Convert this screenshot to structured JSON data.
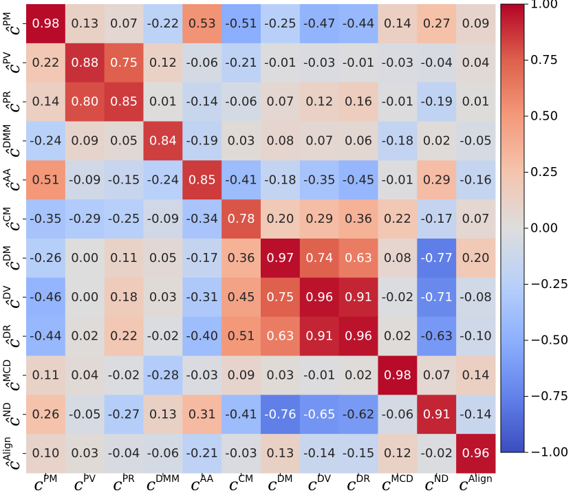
{
  "chart_data": {
    "type": "heatmap",
    "title": "",
    "xlabel": "",
    "ylabel": "",
    "colormap": "coolwarm",
    "vmin": -1.0,
    "vmax": 1.0,
    "x_labels": [
      {
        "base": "c",
        "sup": "PM"
      },
      {
        "base": "c",
        "sup": "PV"
      },
      {
        "base": "c",
        "sup": "PR"
      },
      {
        "base": "c",
        "sup": "DMM"
      },
      {
        "base": "c",
        "sup": "AA"
      },
      {
        "base": "c",
        "sup": "CM"
      },
      {
        "base": "c",
        "sup": "DM"
      },
      {
        "base": "c",
        "sup": "DV"
      },
      {
        "base": "c",
        "sup": "DR"
      },
      {
        "base": "c",
        "sup": "MCD"
      },
      {
        "base": "c",
        "sup": "ND"
      },
      {
        "base": "c",
        "sup": "Align"
      }
    ],
    "y_labels": [
      {
        "base": "ĉ",
        "sup": "PM"
      },
      {
        "base": "ĉ",
        "sup": "PV"
      },
      {
        "base": "ĉ",
        "sup": "PR"
      },
      {
        "base": "ĉ",
        "sup": "DMM"
      },
      {
        "base": "ĉ",
        "sup": "AA"
      },
      {
        "base": "ĉ",
        "sup": "CM"
      },
      {
        "base": "ĉ",
        "sup": "DM"
      },
      {
        "base": "ĉ",
        "sup": "DV"
      },
      {
        "base": "ĉ",
        "sup": "DR"
      },
      {
        "base": "ĉ",
        "sup": "MCD"
      },
      {
        "base": "ĉ",
        "sup": "ND"
      },
      {
        "base": "ĉ",
        "sup": "Align"
      }
    ],
    "values": [
      [
        0.98,
        0.13,
        0.07,
        -0.22,
        0.53,
        -0.51,
        -0.25,
        -0.47,
        -0.44,
        0.14,
        0.27,
        0.09
      ],
      [
        0.22,
        0.88,
        0.75,
        0.12,
        -0.06,
        -0.21,
        -0.01,
        -0.03,
        -0.01,
        -0.03,
        -0.04,
        0.04
      ],
      [
        0.14,
        0.8,
        0.85,
        0.01,
        -0.14,
        -0.06,
        0.07,
        0.12,
        0.16,
        -0.01,
        -0.19,
        0.01
      ],
      [
        -0.24,
        0.09,
        0.05,
        0.84,
        -0.19,
        0.03,
        0.08,
        0.07,
        0.06,
        -0.18,
        0.02,
        -0.05
      ],
      [
        0.51,
        -0.09,
        -0.15,
        -0.24,
        0.85,
        -0.41,
        -0.18,
        -0.35,
        -0.45,
        -0.01,
        0.29,
        -0.16
      ],
      [
        -0.35,
        -0.29,
        -0.25,
        -0.09,
        -0.34,
        0.78,
        0.2,
        0.29,
        0.36,
        0.22,
        -0.17,
        0.07
      ],
      [
        -0.26,
        0.0,
        0.11,
        0.05,
        -0.17,
        0.36,
        0.97,
        0.74,
        0.63,
        0.08,
        -0.77,
        0.2
      ],
      [
        -0.46,
        0.0,
        0.18,
        0.03,
        -0.31,
        0.45,
        0.75,
        0.96,
        0.91,
        -0.02,
        -0.71,
        -0.08
      ],
      [
        -0.44,
        0.02,
        0.22,
        -0.02,
        -0.4,
        0.51,
        0.63,
        0.91,
        0.96,
        0.02,
        -0.63,
        -0.1
      ],
      [
        0.11,
        0.04,
        -0.02,
        -0.28,
        -0.03,
        0.09,
        0.03,
        -0.01,
        0.02,
        0.98,
        0.07,
        0.14
      ],
      [
        0.26,
        -0.05,
        -0.27,
        0.13,
        0.31,
        -0.41,
        -0.76,
        -0.65,
        -0.62,
        -0.06,
        0.91,
        -0.14
      ],
      [
        0.1,
        0.03,
        -0.04,
        -0.06,
        -0.21,
        -0.03,
        0.13,
        -0.14,
        -0.15,
        0.12,
        -0.02,
        0.96
      ]
    ],
    "colorbar": {
      "ticks": [
        1.0,
        0.75,
        0.5,
        0.25,
        0.0,
        -0.25,
        -0.5,
        -0.75,
        -1.0
      ],
      "tick_labels": [
        "1.00",
        "0.75",
        "0.50",
        "0.25",
        "0.00",
        "−0.25",
        "−0.50",
        "−0.75",
        "−1.00"
      ]
    },
    "legend": "none",
    "grid": false
  }
}
